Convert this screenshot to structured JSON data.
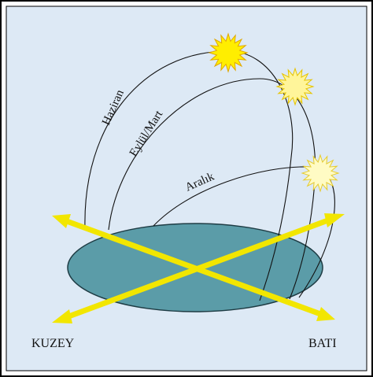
{
  "arcs": [
    {
      "label": "Haziran"
    },
    {
      "label": "Eylül/Mart"
    },
    {
      "label": "Aralık"
    }
  ],
  "directions": {
    "north": "KUZEY",
    "west": "BATI"
  }
}
